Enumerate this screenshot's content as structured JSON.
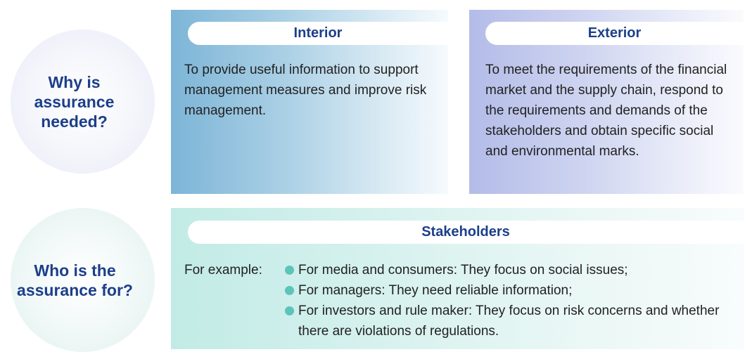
{
  "why": {
    "question": "Why is\nassurance\nneeded?"
  },
  "who": {
    "question": "Who is the\nassurance for?"
  },
  "interior": {
    "title": "Interior",
    "text": "To provide useful information to support management measures and improve risk management."
  },
  "exterior": {
    "title": "Exterior",
    "text": "To meet the requirements of the financial market and the supply chain, respond to the requirements and demands of the stakeholders and obtain specific social and environmental marks."
  },
  "stakeholders": {
    "title": "Stakeholders",
    "intro": "For example:",
    "items": [
      {
        "text": "For media and consumers: They focus on social issues;"
      },
      {
        "text": "For managers: They need reliable information;"
      },
      {
        "text": "For investors and rule maker: They focus on risk concerns and whether there are violations of regulations."
      }
    ]
  },
  "colors": {
    "title_blue": "#1c3f8a",
    "bullet_teal": "#5cc4b8",
    "interior_bg": "#7db5d7",
    "exterior_bg": "#b3bce8",
    "stakeholders_bg": "#c2ebe6"
  }
}
